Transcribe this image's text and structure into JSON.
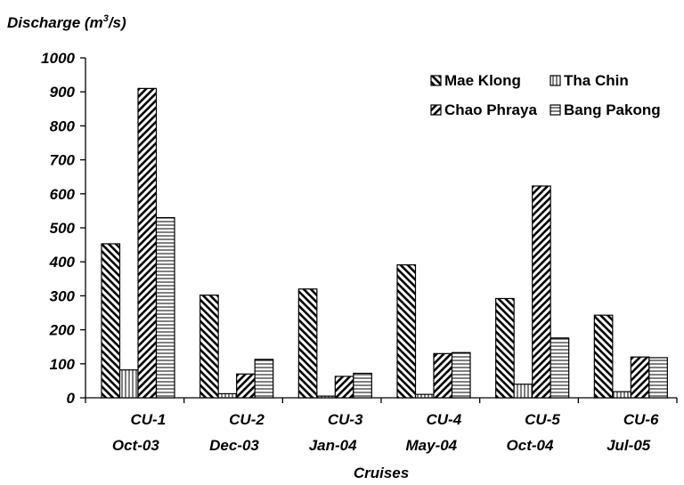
{
  "chart_data": {
    "type": "bar",
    "ylabel": "Discharge (m",
    "ylabel_sup": "3",
    "ylabel_tail": "/s)",
    "xlabel": "Cruises",
    "ylim": [
      0,
      1000
    ],
    "yticks": [
      0,
      100,
      200,
      300,
      400,
      500,
      600,
      700,
      800,
      900,
      1000
    ],
    "ytick_labels": [
      "0",
      "100",
      "200",
      "300",
      "400",
      "500",
      "600",
      "700",
      "800",
      "900",
      "1000"
    ],
    "grid": false,
    "legend_position": "top-right",
    "categories": [
      {
        "cruise": "CU-1",
        "date": "Oct-03"
      },
      {
        "cruise": "CU-2",
        "date": "Dec-03"
      },
      {
        "cruise": "CU-3",
        "date": "Jan-04"
      },
      {
        "cruise": "CU-4",
        "date": "May-04"
      },
      {
        "cruise": "CU-5",
        "date": "Oct-04"
      },
      {
        "cruise": "CU-6",
        "date": "Jul-05"
      }
    ],
    "series": [
      {
        "name": "Mae Klong",
        "pattern": "back-diagonal",
        "values": [
          453,
          302,
          320,
          391,
          292,
          243
        ]
      },
      {
        "name": "Tha Chin",
        "pattern": "vertical",
        "values": [
          82,
          12,
          5,
          10,
          40,
          18
        ]
      },
      {
        "name": "Chao Phraya",
        "pattern": "forward-diagonal",
        "values": [
          910,
          70,
          63,
          130,
          623,
          120
        ]
      },
      {
        "name": "Bang Pakong",
        "pattern": "horizontal",
        "values": [
          530,
          113,
          72,
          133,
          176,
          118
        ]
      }
    ],
    "legend_order": [
      "Mae Klong",
      "Tha Chin",
      "Chao Phraya",
      "Bang Pakong"
    ]
  }
}
